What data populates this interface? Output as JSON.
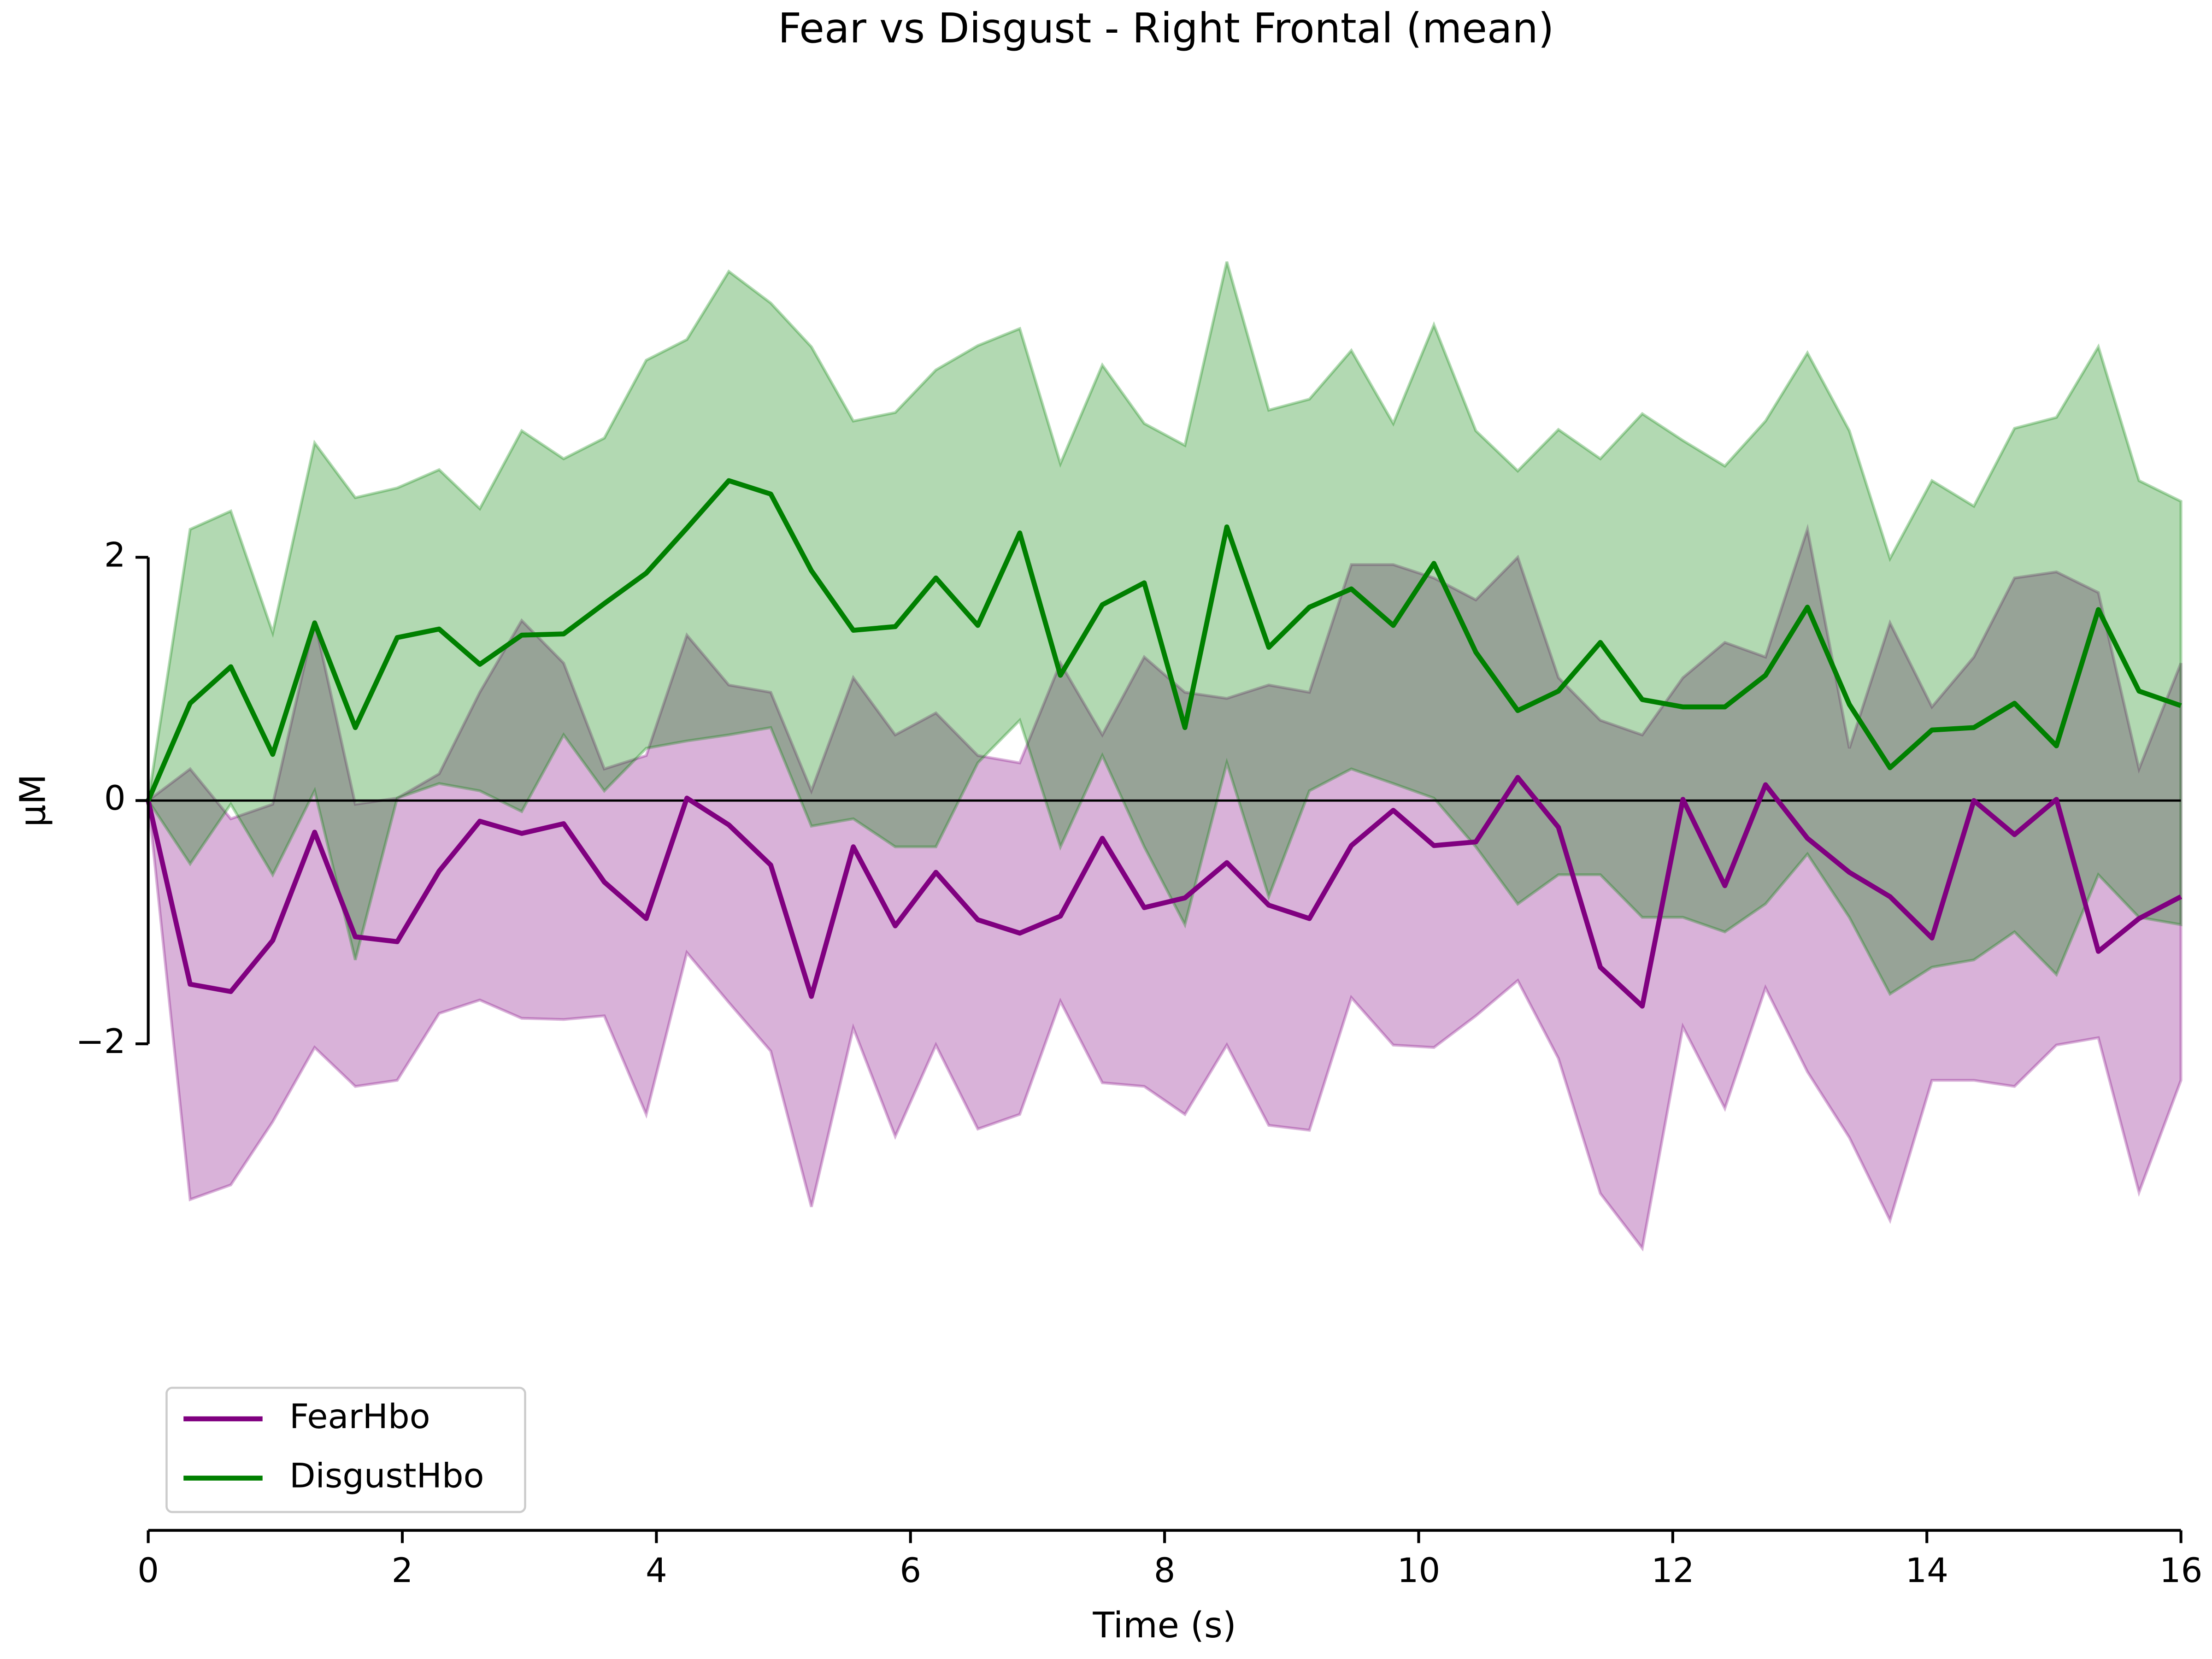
{
  "chart_data": {
    "type": "line",
    "title": "Fear vs Disgust - Right Frontal (mean)",
    "x_label": "Time (s)",
    "y_label": "µM",
    "x": [
      0,
      0.33,
      0.65,
      0.98,
      1.31,
      1.63,
      1.96,
      2.29,
      2.61,
      2.94,
      3.27,
      3.59,
      3.92,
      4.24,
      4.57,
      4.9,
      5.22,
      5.55,
      5.88,
      6.2,
      6.53,
      6.86,
      7.18,
      7.51,
      7.84,
      8.16,
      8.49,
      8.82,
      9.14,
      9.47,
      9.8,
      10.12,
      10.45,
      10.78,
      11.1,
      11.43,
      11.76,
      12.08,
      12.41,
      12.73,
      13.06,
      13.39,
      13.71,
      14.04,
      14.37,
      14.69,
      15.02,
      15.35,
      15.67,
      16
    ],
    "series": [
      {
        "name": "FearHbo",
        "color": "#800080",
        "values": [
          0,
          -1.51,
          -1.57,
          -1.15,
          -0.26,
          -1.12,
          -1.16,
          -0.58,
          -0.17,
          -0.27,
          -0.19,
          -0.67,
          -0.97,
          0.02,
          -0.2,
          -0.53,
          -1.61,
          -0.38,
          -1.03,
          -0.59,
          -0.98,
          -1.09,
          -0.95,
          -0.31,
          -0.88,
          -0.8,
          -0.51,
          -0.86,
          -0.97,
          -0.37,
          -0.08,
          -0.37,
          -0.34,
          0.19,
          -0.22,
          -1.37,
          -1.69,
          0.01,
          -0.7,
          0.13,
          -0.31,
          -0.59,
          -0.79,
          -1.13,
          0,
          -0.28,
          0.01,
          -1.24,
          -0.97,
          -0.79
        ],
        "upper": [
          0,
          0.26,
          -0.15,
          -0.03,
          1.48,
          -0.03,
          0.02,
          0.22,
          0.89,
          1.48,
          1.13,
          0.26,
          0.37,
          1.36,
          0.95,
          0.89,
          0.08,
          1.01,
          0.54,
          0.72,
          0.37,
          0.31,
          1.13,
          0.54,
          1.18,
          0.89,
          0.84,
          0.95,
          0.89,
          1.94,
          1.94,
          1.83,
          1.65,
          2,
          1.01,
          0.66,
          0.54,
          1.01,
          1.3,
          1.18,
          2.23,
          0.43,
          1.46,
          0.77,
          1.18,
          1.83,
          1.88,
          1.71,
          0.26,
          1.13
        ],
        "lower": [
          0,
          -3.28,
          -3.16,
          -2.64,
          -2.03,
          -2.35,
          -2.3,
          -1.75,
          -1.64,
          -1.79,
          -1.8,
          -1.77,
          -2.58,
          -1.25,
          -1.66,
          -2.06,
          -3.34,
          -1.87,
          -2.76,
          -2.01,
          -2.7,
          -2.58,
          -1.65,
          -2.32,
          -2.35,
          -2.58,
          -2.01,
          -2.67,
          -2.71,
          -1.62,
          -2.01,
          -2.03,
          -1.77,
          -1.48,
          -2.12,
          -3.23,
          -3.68,
          -1.86,
          -2.53,
          -1.54,
          -2.23,
          -2.77,
          -3.45,
          -2.3,
          -2.3,
          -2.35,
          -2.01,
          -1.95,
          -3.22,
          -2.3
        ]
      },
      {
        "name": "DisgustHbo",
        "color": "#008000",
        "values": [
          0,
          0.8,
          1.1,
          0.38,
          1.46,
          0.6,
          1.34,
          1.41,
          1.12,
          1.36,
          1.37,
          1.62,
          1.87,
          2.24,
          2.63,
          2.52,
          1.89,
          1.4,
          1.43,
          1.83,
          1.44,
          2.2,
          1.03,
          1.61,
          1.79,
          0.6,
          2.25,
          1.26,
          1.59,
          1.74,
          1.44,
          1.95,
          1.22,
          0.74,
          0.9,
          1.3,
          0.83,
          0.77,
          0.77,
          1.03,
          1.59,
          0.79,
          0.27,
          0.58,
          0.6,
          0.8,
          0.45,
          1.57,
          0.9,
          0.78
        ],
        "upper": [
          0,
          2.23,
          2.38,
          1.38,
          2.94,
          2.49,
          2.57,
          2.72,
          2.4,
          3.04,
          2.81,
          2.98,
          3.62,
          3.79,
          4.35,
          4.09,
          3.73,
          3.12,
          3.19,
          3.54,
          3.74,
          3.88,
          2.77,
          3.58,
          3.1,
          2.92,
          4.43,
          3.21,
          3.3,
          3.7,
          3.1,
          3.91,
          3.04,
          2.71,
          3.05,
          2.81,
          3.18,
          2.96,
          2.75,
          3.12,
          3.68,
          3.04,
          1.99,
          2.63,
          2.42,
          3.06,
          3.15,
          3.73,
          2.63,
          2.46
        ],
        "lower": [
          0,
          -0.52,
          -0.03,
          -0.61,
          0.08,
          -1.31,
          0.02,
          0.14,
          0.08,
          -0.09,
          0.54,
          0.08,
          0.43,
          0.49,
          0.54,
          0.6,
          -0.21,
          -0.15,
          -0.38,
          -0.38,
          0.31,
          0.66,
          -0.38,
          0.37,
          -0.38,
          -1.02,
          0.31,
          -0.79,
          0.08,
          0.26,
          0.14,
          0.02,
          -0.38,
          -0.85,
          -0.61,
          -0.61,
          -0.96,
          -0.96,
          -1.08,
          -0.85,
          -0.44,
          -0.96,
          -1.59,
          -1.37,
          -1.31,
          -1.08,
          -1.43,
          -0.61,
          -0.96,
          -1.02
        ]
      }
    ],
    "band_opacity": 0.3,
    "axhline": 0,
    "xlim": [
      0,
      16
    ],
    "xticks": [
      0,
      2,
      4,
      6,
      8,
      10,
      12,
      14,
      16
    ],
    "ylim": [
      -6,
      6
    ],
    "yticks": [
      {
        "value": -2,
        "label": "−2"
      },
      0,
      2
    ],
    "grid": false,
    "legend": "lower left"
  }
}
